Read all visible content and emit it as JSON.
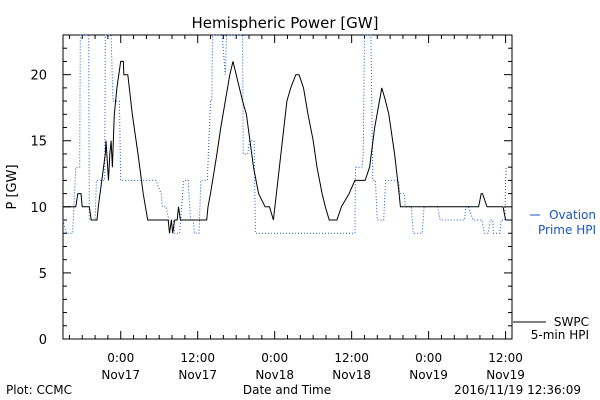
{
  "chart_data": {
    "type": "line",
    "title": "Hemispheric Power [GW]",
    "xlabel": "Date and Time",
    "ylabel": "P [GW]",
    "ylim": [
      0,
      23
    ],
    "yticks": [
      0,
      5,
      10,
      15,
      20
    ],
    "xlim": [
      "2016-11-16T15:00",
      "2016-11-19T13:00"
    ],
    "xticks": [
      {
        "time": "2016-11-17T00:00",
        "line1": "0:00",
        "line2": "Nov17"
      },
      {
        "time": "2016-11-17T12:00",
        "line1": "12:00",
        "line2": "Nov17"
      },
      {
        "time": "2016-11-18T00:00",
        "line1": "0:00",
        "line2": "Nov18"
      },
      {
        "time": "2016-11-18T12:00",
        "line1": "12:00",
        "line2": "Nov18"
      },
      {
        "time": "2016-11-19T00:00",
        "line1": "0:00",
        "line2": "Nov19"
      },
      {
        "time": "2016-11-19T12:00",
        "line1": "12:00",
        "line2": "Nov19"
      }
    ],
    "grid": false,
    "series": [
      {
        "name": "SWPC 5-min HPI",
        "label_line1": "SWPC",
        "label_line2": "5-min HPI",
        "color": "#000000",
        "style": "solid",
        "points": [
          [
            "2016-11-16T15:00",
            10
          ],
          [
            "2016-11-16T17:00",
            10
          ],
          [
            "2016-11-16T17:18",
            11
          ],
          [
            "2016-11-16T17:48",
            11
          ],
          [
            "2016-11-16T18:00",
            10
          ],
          [
            "2016-11-16T19:06",
            10
          ],
          [
            "2016-11-16T19:24",
            9
          ],
          [
            "2016-11-16T20:18",
            9
          ],
          [
            "2016-11-16T20:30",
            10
          ],
          [
            "2016-11-16T21:36",
            14
          ],
          [
            "2016-11-16T21:42",
            15
          ],
          [
            "2016-11-16T22:06",
            12
          ],
          [
            "2016-11-16T22:18",
            14
          ],
          [
            "2016-11-16T22:30",
            15
          ],
          [
            "2016-11-16T22:42",
            13
          ],
          [
            "2016-11-16T23:00",
            17
          ],
          [
            "2016-11-16T23:24",
            19
          ],
          [
            "2016-11-16T23:42",
            20
          ],
          [
            "2016-11-17T00:00",
            21
          ],
          [
            "2016-11-17T00:24",
            21
          ],
          [
            "2016-11-17T00:30",
            20
          ],
          [
            "2016-11-17T01:06",
            20
          ],
          [
            "2016-11-17T01:48",
            17
          ],
          [
            "2016-11-17T02:42",
            14
          ],
          [
            "2016-11-17T03:30",
            11
          ],
          [
            "2016-11-17T04:12",
            9
          ],
          [
            "2016-11-17T07:24",
            9
          ],
          [
            "2016-11-17T07:36",
            8
          ],
          [
            "2016-11-17T07:54",
            9
          ],
          [
            "2016-11-17T08:06",
            8
          ],
          [
            "2016-11-17T08:24",
            9
          ],
          [
            "2016-11-17T08:48",
            9
          ],
          [
            "2016-11-17T09:00",
            10
          ],
          [
            "2016-11-17T09:18",
            9
          ],
          [
            "2016-11-17T13:24",
            9
          ],
          [
            "2016-11-17T13:36",
            10
          ],
          [
            "2016-11-17T14:00",
            11
          ],
          [
            "2016-11-17T15:00",
            14
          ],
          [
            "2016-11-17T15:36",
            16
          ],
          [
            "2016-11-17T16:18",
            18
          ],
          [
            "2016-11-17T17:00",
            20
          ],
          [
            "2016-11-17T17:30",
            21
          ],
          [
            "2016-11-17T18:00",
            20
          ],
          [
            "2016-11-17T19:00",
            18
          ],
          [
            "2016-11-17T19:36",
            17
          ],
          [
            "2016-11-17T20:42",
            13
          ],
          [
            "2016-11-17T21:30",
            11
          ],
          [
            "2016-11-17T22:30",
            10
          ],
          [
            "2016-11-17T23:12",
            10
          ],
          [
            "2016-11-17T23:48",
            9
          ],
          [
            "2016-11-18T00:30",
            12
          ],
          [
            "2016-11-18T01:12",
            15
          ],
          [
            "2016-11-18T01:54",
            18
          ],
          [
            "2016-11-18T02:30",
            19
          ],
          [
            "2016-11-18T03:18",
            20
          ],
          [
            "2016-11-18T03:48",
            20
          ],
          [
            "2016-11-18T04:30",
            19
          ],
          [
            "2016-11-18T05:12",
            17
          ],
          [
            "2016-11-18T06:00",
            15
          ],
          [
            "2016-11-18T06:36",
            13
          ],
          [
            "2016-11-18T07:24",
            11
          ],
          [
            "2016-11-18T07:54",
            10
          ],
          [
            "2016-11-18T08:30",
            9
          ],
          [
            "2016-11-18T09:42",
            9
          ],
          [
            "2016-11-18T10:24",
            10
          ],
          [
            "2016-11-18T11:36",
            11
          ],
          [
            "2016-11-18T12:30",
            12
          ],
          [
            "2016-11-18T14:06",
            12
          ],
          [
            "2016-11-18T14:48",
            13
          ],
          [
            "2016-11-18T15:36",
            16
          ],
          [
            "2016-11-18T16:42",
            19
          ],
          [
            "2016-11-18T17:18",
            18
          ],
          [
            "2016-11-18T17:48",
            17
          ],
          [
            "2016-11-18T18:42",
            14
          ],
          [
            "2016-11-18T19:24",
            11
          ],
          [
            "2016-11-18T19:36",
            10
          ],
          [
            "2016-11-19T07:00",
            10
          ],
          [
            "2016-11-19T07:48",
            10
          ],
          [
            "2016-11-19T08:12",
            11
          ],
          [
            "2016-11-19T08:24",
            11
          ],
          [
            "2016-11-19T09:06",
            10
          ],
          [
            "2016-11-19T11:36",
            10
          ],
          [
            "2016-11-19T12:00",
            9
          ],
          [
            "2016-11-19T13:00",
            9
          ]
        ]
      },
      {
        "name": "Ovation Prime HPI",
        "label_line1": "Ovation",
        "label_line2": "Prime HPI",
        "color": "#1a56c2",
        "style": "dotted",
        "points": [
          [
            "2016-11-16T15:00",
            9
          ],
          [
            "2016-11-16T15:30",
            8
          ],
          [
            "2016-11-16T16:30",
            8
          ],
          [
            "2016-11-16T17:00",
            13
          ],
          [
            "2016-11-16T17:36",
            13
          ],
          [
            "2016-11-16T17:42",
            24
          ],
          [
            "2016-11-16T19:00",
            24
          ],
          [
            "2016-11-16T19:06",
            9
          ],
          [
            "2016-11-16T20:00",
            9
          ],
          [
            "2016-11-16T20:12",
            12
          ],
          [
            "2016-11-16T21:30",
            12
          ],
          [
            "2016-11-16T21:36",
            24
          ],
          [
            "2016-11-16T22:30",
            24
          ],
          [
            "2016-11-16T22:48",
            18
          ],
          [
            "2016-11-16T23:48",
            18
          ],
          [
            "2016-11-17T00:00",
            12
          ],
          [
            "2016-11-17T05:30",
            12
          ],
          [
            "2016-11-17T06:18",
            11
          ],
          [
            "2016-11-17T06:30",
            10
          ],
          [
            "2016-11-17T07:06",
            10
          ],
          [
            "2016-11-17T07:30",
            9
          ],
          [
            "2016-11-17T08:12",
            9
          ],
          [
            "2016-11-17T08:24",
            8
          ],
          [
            "2016-11-17T09:12",
            8
          ],
          [
            "2016-11-17T09:48",
            12
          ],
          [
            "2016-11-17T10:30",
            12
          ],
          [
            "2016-11-17T10:54",
            9
          ],
          [
            "2016-11-17T11:18",
            9
          ],
          [
            "2016-11-17T11:30",
            8
          ],
          [
            "2016-11-17T12:12",
            8
          ],
          [
            "2016-11-17T12:30",
            12
          ],
          [
            "2016-11-17T13:30",
            12
          ],
          [
            "2016-11-17T14:00",
            18
          ],
          [
            "2016-11-17T14:12",
            18
          ],
          [
            "2016-11-17T14:18",
            24
          ],
          [
            "2016-11-17T15:00",
            24
          ],
          [
            "2016-11-17T15:48",
            24
          ],
          [
            "2016-11-17T16:18",
            20
          ],
          [
            "2016-11-17T16:30",
            24
          ],
          [
            "2016-11-17T17:30",
            24
          ],
          [
            "2016-11-17T18:00",
            24
          ],
          [
            "2016-11-17T19:00",
            24
          ],
          [
            "2016-11-17T19:06",
            14
          ],
          [
            "2016-11-17T19:48",
            14
          ],
          [
            "2016-11-17T20:06",
            15
          ],
          [
            "2016-11-17T20:48",
            15
          ],
          [
            "2016-11-17T21:00",
            8
          ],
          [
            "2016-11-18T12:30",
            8
          ],
          [
            "2016-11-18T12:36",
            13
          ],
          [
            "2016-11-18T13:36",
            13
          ],
          [
            "2016-11-18T13:48",
            14
          ],
          [
            "2016-11-18T14:00",
            24
          ],
          [
            "2016-11-18T15:00",
            24
          ],
          [
            "2016-11-18T15:18",
            12
          ],
          [
            "2016-11-18T15:42",
            12
          ],
          [
            "2016-11-18T16:00",
            9
          ],
          [
            "2016-11-18T17:00",
            9
          ],
          [
            "2016-11-18T17:18",
            12
          ],
          [
            "2016-11-18T17:48",
            12
          ],
          [
            "2016-11-18T18:06",
            12
          ],
          [
            "2016-11-18T19:18",
            12
          ],
          [
            "2016-11-18T19:30",
            11
          ],
          [
            "2016-11-18T20:12",
            11
          ],
          [
            "2016-11-18T20:24",
            10
          ],
          [
            "2016-11-18T21:18",
            10
          ],
          [
            "2016-11-18T21:36",
            8
          ],
          [
            "2016-11-18T23:00",
            8
          ],
          [
            "2016-11-18T23:18",
            10
          ],
          [
            "2016-11-19T01:24",
            10
          ],
          [
            "2016-11-19T01:48",
            9
          ],
          [
            "2016-11-19T05:36",
            9
          ],
          [
            "2016-11-19T05:48",
            10
          ],
          [
            "2016-11-19T06:12",
            10
          ],
          [
            "2016-11-19T06:54",
            9
          ],
          [
            "2016-11-19T08:18",
            9
          ],
          [
            "2016-11-19T08:42",
            8
          ],
          [
            "2016-11-19T09:18",
            8
          ],
          [
            "2016-11-19T09:36",
            9
          ],
          [
            "2016-11-19T10:00",
            9
          ],
          [
            "2016-11-19T10:06",
            8
          ],
          [
            "2016-11-19T11:06",
            8
          ],
          [
            "2016-11-19T11:18",
            9
          ],
          [
            "2016-11-19T11:54",
            9
          ],
          [
            "2016-11-19T12:00",
            12
          ],
          [
            "2016-11-19T12:06",
            13
          ]
        ]
      }
    ]
  },
  "footer": {
    "left": "Plot: CCMC",
    "timestamp": "2016/11/19 12:36:09"
  }
}
